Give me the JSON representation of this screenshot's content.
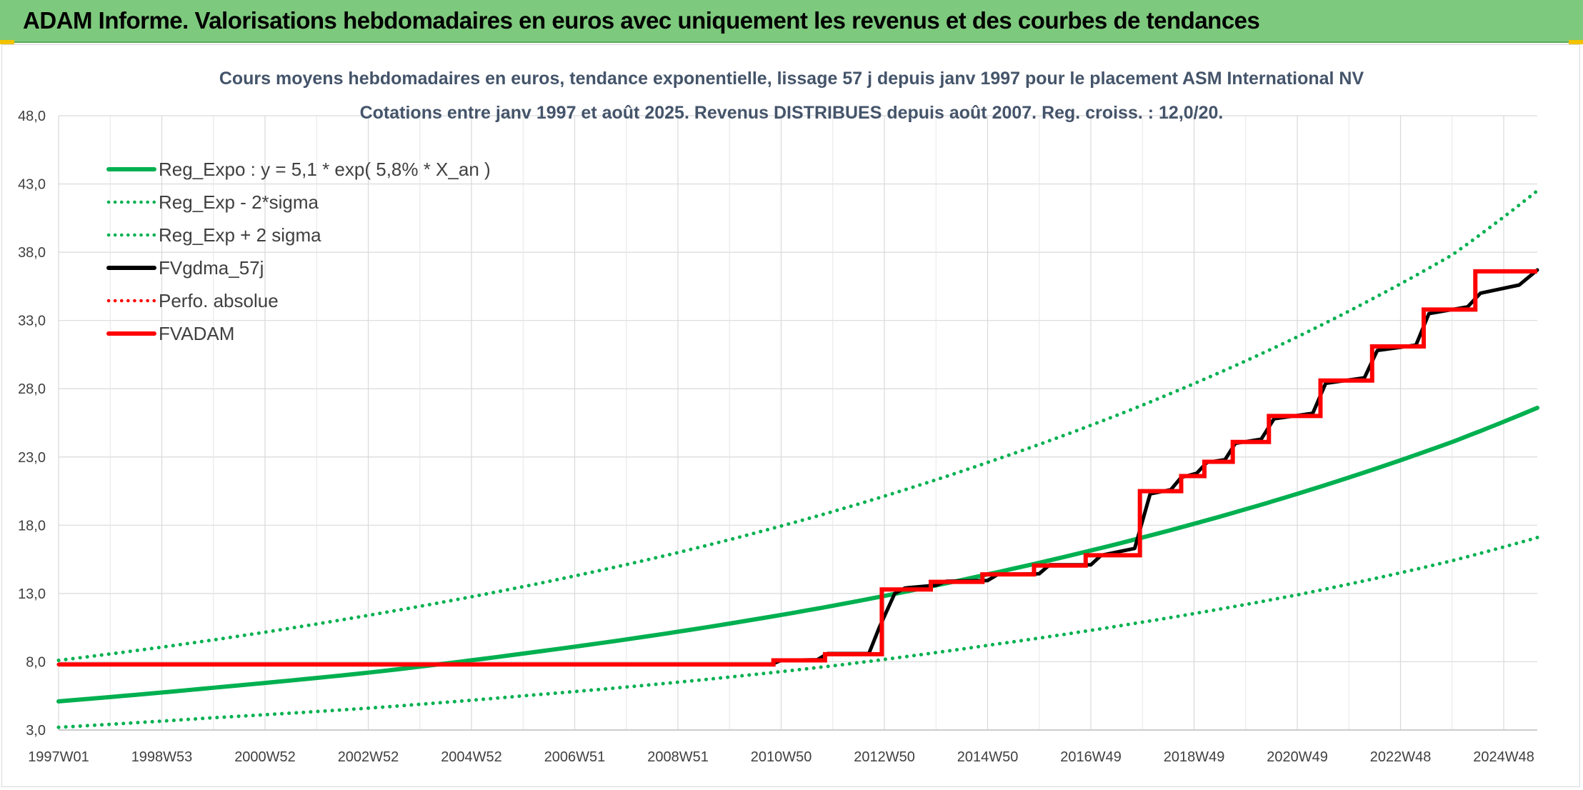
{
  "header": {
    "title": "ADAM Informe. Valorisations hebdomadaires en euros avec uniquement les revenus et des courbes de tendances"
  },
  "chart_data": {
    "type": "line",
    "title": "Cours moyens hebdomadaires en euros, tendance exponentielle, lissage 57 j depuis janv 1997 pour le placement ASM International NV",
    "subtitle": "Cotations entre janv 1997 et août 2025. Revenus DISTRIBUES depuis août 2007. Reg. croiss. : 12,0/20.",
    "xlabel": "",
    "ylabel": "",
    "ylim": [
      3.0,
      48.0
    ],
    "y_ticks": [
      "3,0",
      "8,0",
      "13,0",
      "18,0",
      "23,0",
      "28,0",
      "33,0",
      "38,0",
      "43,0",
      "48,0"
    ],
    "x_ticks": [
      "1997W01",
      "1998W53",
      "2000W52",
      "2002W52",
      "2004W52",
      "2006W51",
      "2008W51",
      "2010W50",
      "2012W50",
      "2014W50",
      "2016W49",
      "2018W49",
      "2020W49",
      "2022W48",
      "2024W48"
    ],
    "x_range_years": [
      1997.0,
      2025.65
    ],
    "grid": true,
    "legend_position": "top-left",
    "colors": {
      "green": "#00b050",
      "black": "#000000",
      "red": "#ff0000",
      "header_bg": "#7dc97d",
      "title_text": "#44546a"
    },
    "series": [
      {
        "name": "Reg_Expo : y = 5,1 * exp( 5,8% *  X_an )",
        "style": "solid",
        "color": "#00b050",
        "x": [
          1997,
          2000,
          2003,
          2006,
          2009,
          2012,
          2015,
          2018,
          2021,
          2024,
          2025.65
        ],
        "y": [
          5.1,
          6.1,
          7.2,
          8.6,
          10.2,
          12.1,
          14.4,
          17.1,
          20.3,
          24.1,
          26.6
        ]
      },
      {
        "name": "Reg_Exp - 2*sigma",
        "style": "dotted",
        "color": "#00b050",
        "x": [
          1997,
          2000,
          2003,
          2006,
          2009,
          2012,
          2015,
          2018,
          2021,
          2024,
          2025.65
        ],
        "y": [
          3.2,
          3.9,
          4.6,
          5.5,
          6.5,
          7.7,
          9.2,
          10.9,
          12.9,
          15.4,
          17.1
        ]
      },
      {
        "name": "Reg_Exp + 2 sigma",
        "style": "dotted",
        "color": "#00b050",
        "x": [
          1997,
          2000,
          2003,
          2006,
          2009,
          2012,
          2015,
          2018,
          2021,
          2024,
          2025.65
        ],
        "y": [
          8.1,
          9.6,
          11.4,
          13.5,
          16.0,
          19.0,
          22.6,
          26.8,
          31.8,
          37.8,
          42.5
        ]
      },
      {
        "name": "FVgdma_57j",
        "style": "solid",
        "color": "#000000",
        "x": [
          1997,
          2007.0,
          2010.8,
          2011.0,
          2011.7,
          2011.9,
          2012.7,
          2012.9,
          2013.2,
          2013.4,
          2014.0,
          2014.2,
          2015.0,
          2015.2,
          2016.0,
          2016.2,
          2017.0,
          2017.2,
          2017.85,
          2018.15,
          2018.55,
          2018.75,
          2019.05,
          2019.25,
          2019.6,
          2019.8,
          2020.3,
          2020.55,
          2021.3,
          2021.55,
          2022.3,
          2022.55,
          2023.3,
          2023.55,
          2024.3,
          2024.55,
          2025.3,
          2025.65
        ],
        "y": [
          7.8,
          7.8,
          7.8,
          8.1,
          8.15,
          8.6,
          8.6,
          10.5,
          13.0,
          13.4,
          13.6,
          13.9,
          13.95,
          14.4,
          14.45,
          15.1,
          15.1,
          15.8,
          16.3,
          20.3,
          20.6,
          21.5,
          21.8,
          22.6,
          22.8,
          24.0,
          24.3,
          25.8,
          26.2,
          28.4,
          28.8,
          30.8,
          31.2,
          33.5,
          34.0,
          35.0,
          35.6,
          36.7
        ]
      },
      {
        "name": "Perfo. absolue",
        "style": "dotted",
        "color": "#ff0000",
        "x": [
          1997,
          2007.0,
          2010.85,
          2011.85,
          2012.95,
          2013.9,
          2014.9,
          2015.9,
          2016.9,
          2017.95,
          2018.75,
          2019.2,
          2019.75,
          2020.45,
          2021.45,
          2022.45,
          2023.45,
          2024.45,
          2025.65
        ],
        "y": [
          7.8,
          7.8,
          8.1,
          8.55,
          13.3,
          13.85,
          14.4,
          15.05,
          15.8,
          20.5,
          21.6,
          22.65,
          24.1,
          26.0,
          28.6,
          31.1,
          33.8,
          36.6,
          36.6
        ]
      },
      {
        "name": "FVADAM",
        "style": "solid",
        "color": "#ff0000",
        "x": [
          1997,
          2007.0,
          2010.85,
          2011.85,
          2012.95,
          2013.9,
          2014.9,
          2015.9,
          2016.9,
          2017.95,
          2018.75,
          2019.2,
          2019.75,
          2020.45,
          2021.45,
          2022.45,
          2023.45,
          2024.45,
          2025.35,
          2025.65
        ],
        "y": [
          7.8,
          7.8,
          8.1,
          8.55,
          13.3,
          13.85,
          14.4,
          15.05,
          15.8,
          20.5,
          21.6,
          22.65,
          24.1,
          26.0,
          28.6,
          31.1,
          33.8,
          36.6,
          36.6,
          36.6
        ]
      }
    ]
  }
}
